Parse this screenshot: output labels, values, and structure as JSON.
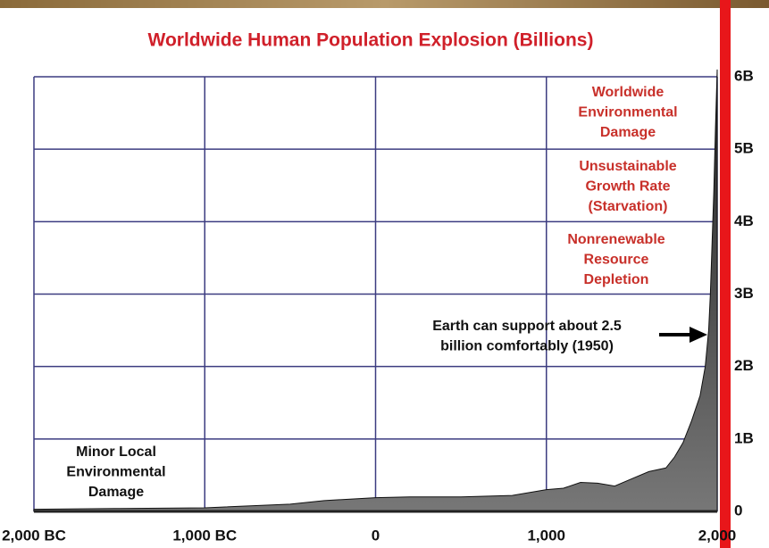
{
  "chart_data": {
    "type": "area",
    "title": "Worldwide Human Population Explosion (Billions)",
    "x": [
      -2000,
      -1500,
      -1000,
      -700,
      -500,
      -300,
      0,
      200,
      500,
      800,
      1000,
      1100,
      1200,
      1300,
      1400,
      1500,
      1600,
      1700,
      1750,
      1800,
      1850,
      1900,
      1930,
      1950,
      1960,
      1970,
      1980,
      1990,
      2000
    ],
    "values": [
      0.03,
      0.04,
      0.05,
      0.08,
      0.1,
      0.15,
      0.19,
      0.2,
      0.2,
      0.22,
      0.3,
      0.32,
      0.4,
      0.39,
      0.35,
      0.45,
      0.55,
      0.6,
      0.75,
      0.95,
      1.25,
      1.6,
      2.0,
      2.5,
      3.0,
      3.7,
      4.4,
      5.3,
      6.1
    ],
    "color": "#555555",
    "xlim": [
      -2000,
      2000
    ],
    "xticks": [
      {
        "value": -2000,
        "label": "2,000 BC"
      },
      {
        "value": -1000,
        "label": "1,000 BC"
      },
      0,
      {
        "value": 1000,
        "label": "1,000"
      },
      {
        "value": 2000,
        "label": "2,000"
      }
    ],
    "ylim": [
      0,
      6
    ],
    "yticks": [
      0,
      {
        "value": 1,
        "label": "1B"
      },
      {
        "value": 2,
        "label": "2B"
      },
      {
        "value": 3,
        "label": "3B"
      },
      {
        "value": 4,
        "label": "4B"
      },
      {
        "value": 5,
        "label": "5B"
      },
      {
        "value": 6,
        "label": "6B"
      }
    ],
    "grid": true,
    "annotations": [
      [
        "Worldwide",
        "Environmental",
        "Damage"
      ],
      [
        "Unsustainable",
        "Growth Rate",
        "(Starvation)"
      ],
      [
        "Nonrenewable",
        "Resource",
        "Depletion"
      ],
      [
        "Earth can support about 2.5",
        "billion comfortably (1950)"
      ],
      [
        "Minor Local",
        "Environmental",
        "Damage"
      ]
    ]
  }
}
